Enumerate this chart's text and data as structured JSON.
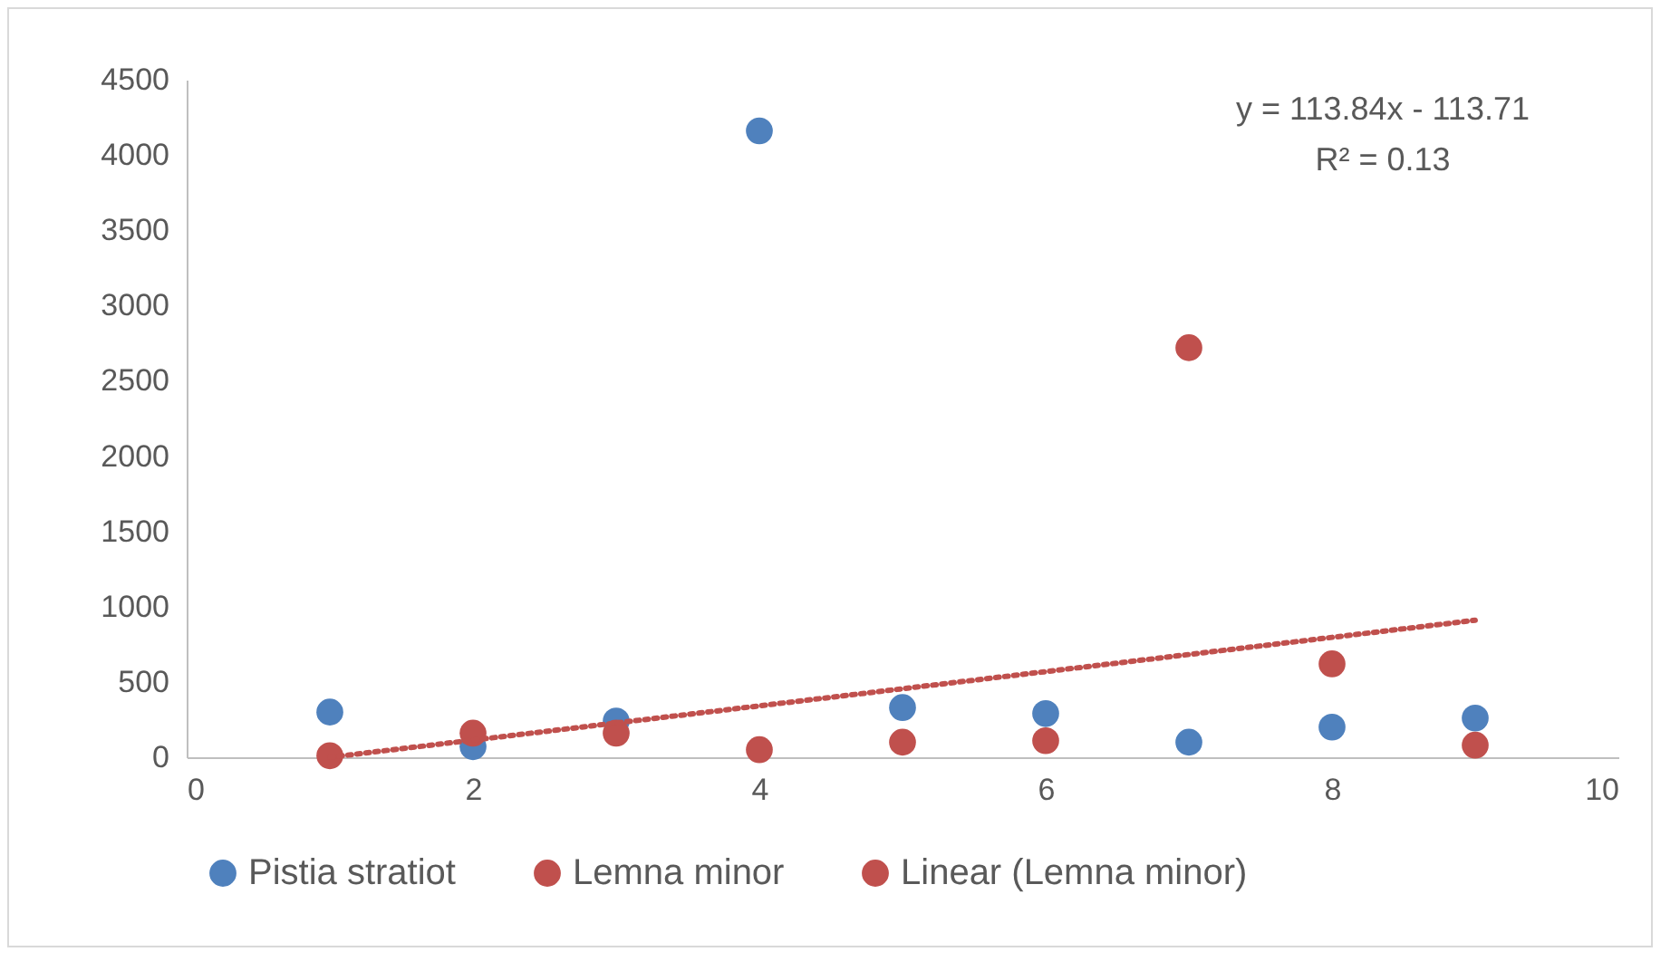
{
  "chart_data": {
    "type": "scatter",
    "x": [
      1,
      2,
      3,
      4,
      5,
      6,
      7,
      8,
      9
    ],
    "series": [
      {
        "name": "Pistia stratiot",
        "color": "#4f81bd",
        "values": [
          300,
          70,
          240,
          4160,
          330,
          290,
          100,
          200,
          260
        ]
      },
      {
        "name": "Lemna minor",
        "color": "#c0504d",
        "values": [
          10,
          160,
          160,
          50,
          100,
          110,
          2720,
          620,
          80
        ]
      },
      {
        "name": "Linear (Lemna minor)",
        "type": "line",
        "line_style": "dotted",
        "marker": "none",
        "color": "#c0504d",
        "x": [
          1,
          9
        ],
        "values": [
          0,
          910
        ]
      }
    ],
    "xlim": [
      0,
      10
    ],
    "xticks": [
      0,
      2,
      4,
      6,
      8,
      10
    ],
    "ylim": [
      0,
      4500
    ],
    "yticks": [
      0,
      500,
      1000,
      1500,
      2000,
      2500,
      3000,
      3500,
      4000,
      4500
    ],
    "grid": false,
    "legend": "bottom",
    "marker": "circle",
    "annotations": [
      "y = 113.84x - 113.71",
      "R² = 0.13"
    ]
  }
}
